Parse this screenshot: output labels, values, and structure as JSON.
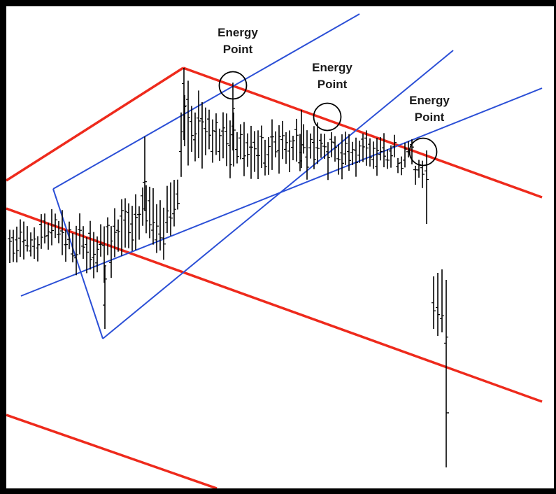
{
  "chart_data": {
    "type": "ohlc",
    "title": "",
    "xlabel": "",
    "ylabel": "",
    "axes_visible": false,
    "grid": false,
    "colors": {
      "price_bars": "#000000",
      "red_lines": "#ee2a1c",
      "blue_lines": "#2b4fd6",
      "circles": "#000000"
    },
    "annotations": [
      {
        "text_line1": "Energy",
        "text_line2": "Point"
      },
      {
        "text_line1": "Energy",
        "text_line2": "Point"
      },
      {
        "text_line1": "Energy",
        "text_line2": "Point"
      }
    ]
  }
}
